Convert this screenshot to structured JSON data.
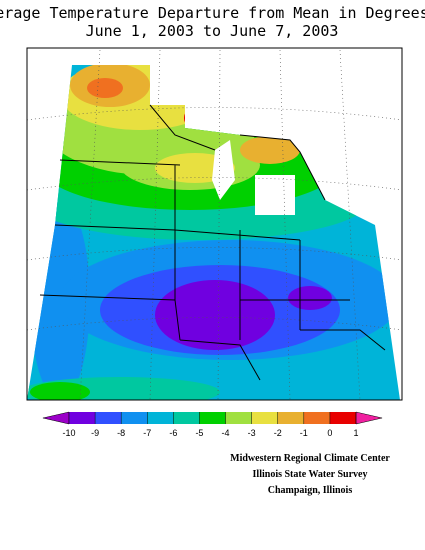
{
  "title": [
    "Average Temperature Departure from Mean in Degrees F",
    "June 1, 2003 to June 7, 2003"
  ],
  "legend": {
    "ticks": [
      -10,
      -9,
      -8,
      -7,
      -6,
      -5,
      -4,
      -3,
      -2,
      -1,
      0,
      1
    ],
    "colors": [
      "#9b00c8",
      "#7000e0",
      "#3050ff",
      "#1090f0",
      "#00b4d8",
      "#00c8a0",
      "#00d000",
      "#a0e040",
      "#e8e040",
      "#e8b030",
      "#f07020",
      "#e80000",
      "#f020a0"
    ]
  },
  "credits": [
    "Midwestern Regional Climate Center",
    "Illinois State Water Survey",
    "Champaign, Illinois"
  ]
}
